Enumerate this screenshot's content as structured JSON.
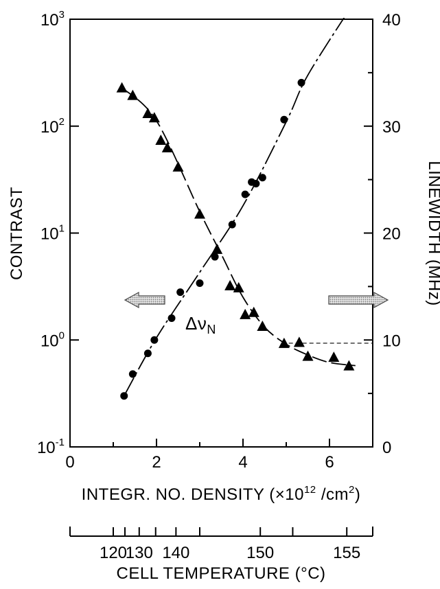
{
  "chart_data": {
    "type": "scatter",
    "title": "",
    "xlabel": "INTEGR. NO. DENSITY (×10",
    "xlabel_exp": "12",
    "xlabel_unit": " /cm",
    "xlabel_unit_exp": "2",
    "xlabel_close": ")",
    "xlim": [
      0,
      7
    ],
    "xticks": [
      {
        "value": 0,
        "label": "0"
      },
      {
        "value": 2,
        "label": "2"
      },
      {
        "value": 4,
        "label": "4"
      },
      {
        "value": 6,
        "label": "6"
      }
    ],
    "ylabel_left": "CONTRAST",
    "ylim_left": [
      0.1,
      1000
    ],
    "yscale_left": "log",
    "yticks_left": [
      {
        "value": 1000,
        "base": "10",
        "exp": "3"
      },
      {
        "value": 100,
        "base": "10",
        "exp": "2"
      },
      {
        "value": 10,
        "base": "10",
        "exp": "1"
      },
      {
        "value": 1,
        "base": "10",
        "exp": "0"
      },
      {
        "value": 0.1,
        "base": "10",
        "exp": "-1"
      }
    ],
    "ylabel_right": "LINEWIDTH (MHz)",
    "ylim_right": [
      0,
      40
    ],
    "yticks_right": [
      {
        "value": 0,
        "label": "0"
      },
      {
        "value": 10,
        "label": "10"
      },
      {
        "value": 20,
        "label": "20"
      },
      {
        "value": 30,
        "label": "30"
      },
      {
        "value": 40,
        "label": "40"
      }
    ],
    "series": [
      {
        "axis": "left",
        "marker": "circle",
        "points": [
          [
            1.25,
            0.3
          ],
          [
            1.45,
            0.48
          ],
          [
            1.8,
            0.75
          ],
          [
            1.95,
            1.0
          ],
          [
            2.35,
            1.6
          ],
          [
            2.55,
            2.8
          ],
          [
            3.0,
            3.4
          ],
          [
            3.35,
            6.0
          ],
          [
            3.75,
            12
          ],
          [
            4.05,
            23
          ],
          [
            4.2,
            30
          ],
          [
            4.3,
            29
          ],
          [
            4.45,
            33
          ],
          [
            4.95,
            115
          ],
          [
            5.35,
            255
          ]
        ],
        "curve": [
          [
            1.25,
            0.3
          ],
          [
            2.0,
            1.05
          ],
          [
            3.0,
            4.3
          ],
          [
            4.0,
            18
          ],
          [
            5.0,
            110
          ],
          [
            5.5,
            300
          ],
          [
            6.55,
            1400
          ]
        ]
      },
      {
        "axis": "right",
        "marker": "triangle",
        "points": [
          [
            1.2,
            33.6
          ],
          [
            1.45,
            32.9
          ],
          [
            1.8,
            31.2
          ],
          [
            1.95,
            30.8
          ],
          [
            2.1,
            28.7
          ],
          [
            2.25,
            28.0
          ],
          [
            2.5,
            26.2
          ],
          [
            3.0,
            21.8
          ],
          [
            3.4,
            18.5
          ],
          [
            3.7,
            15.1
          ],
          [
            3.9,
            14.9
          ],
          [
            4.05,
            12.4
          ],
          [
            4.25,
            12.6
          ],
          [
            4.45,
            11.3
          ],
          [
            4.95,
            9.7
          ],
          [
            5.3,
            9.8
          ],
          [
            5.5,
            8.5
          ],
          [
            6.1,
            8.4
          ],
          [
            6.45,
            7.6
          ]
        ],
        "curve": [
          [
            1.2,
            33.6
          ],
          [
            2.0,
            30.5
          ],
          [
            3.0,
            22
          ],
          [
            3.5,
            18
          ],
          [
            4.0,
            14
          ],
          [
            4.5,
            11.2
          ],
          [
            5.0,
            9.6
          ],
          [
            5.5,
            8.6
          ],
          [
            6.0,
            7.9
          ],
          [
            6.6,
            7.6
          ]
        ]
      }
    ],
    "annotations": {
      "delta_label": "Δν",
      "delta_sub": "N",
      "delta_value": 9.7,
      "delta_x_start": 4.9
    },
    "temperature_axis": {
      "label": "CELL TEMPERATURE (°C)",
      "ticks": [
        {
          "value": 120,
          "label": "120",
          "x": 1.0
        },
        {
          "value": 125,
          "label": "",
          "x": 1.27
        },
        {
          "value": 130,
          "label": "130",
          "x": 1.6
        },
        {
          "value": 135,
          "label": "",
          "x": 1.98
        },
        {
          "value": 140,
          "label": "140",
          "x": 2.45
        },
        {
          "value": 145,
          "label": "",
          "x": 3.0
        },
        {
          "value": 150,
          "label": "150",
          "x": 4.4
        },
        {
          "value": 153,
          "label": "",
          "x": 5.15
        },
        {
          "value": 155,
          "label": "155",
          "x": 6.4
        }
      ]
    }
  }
}
